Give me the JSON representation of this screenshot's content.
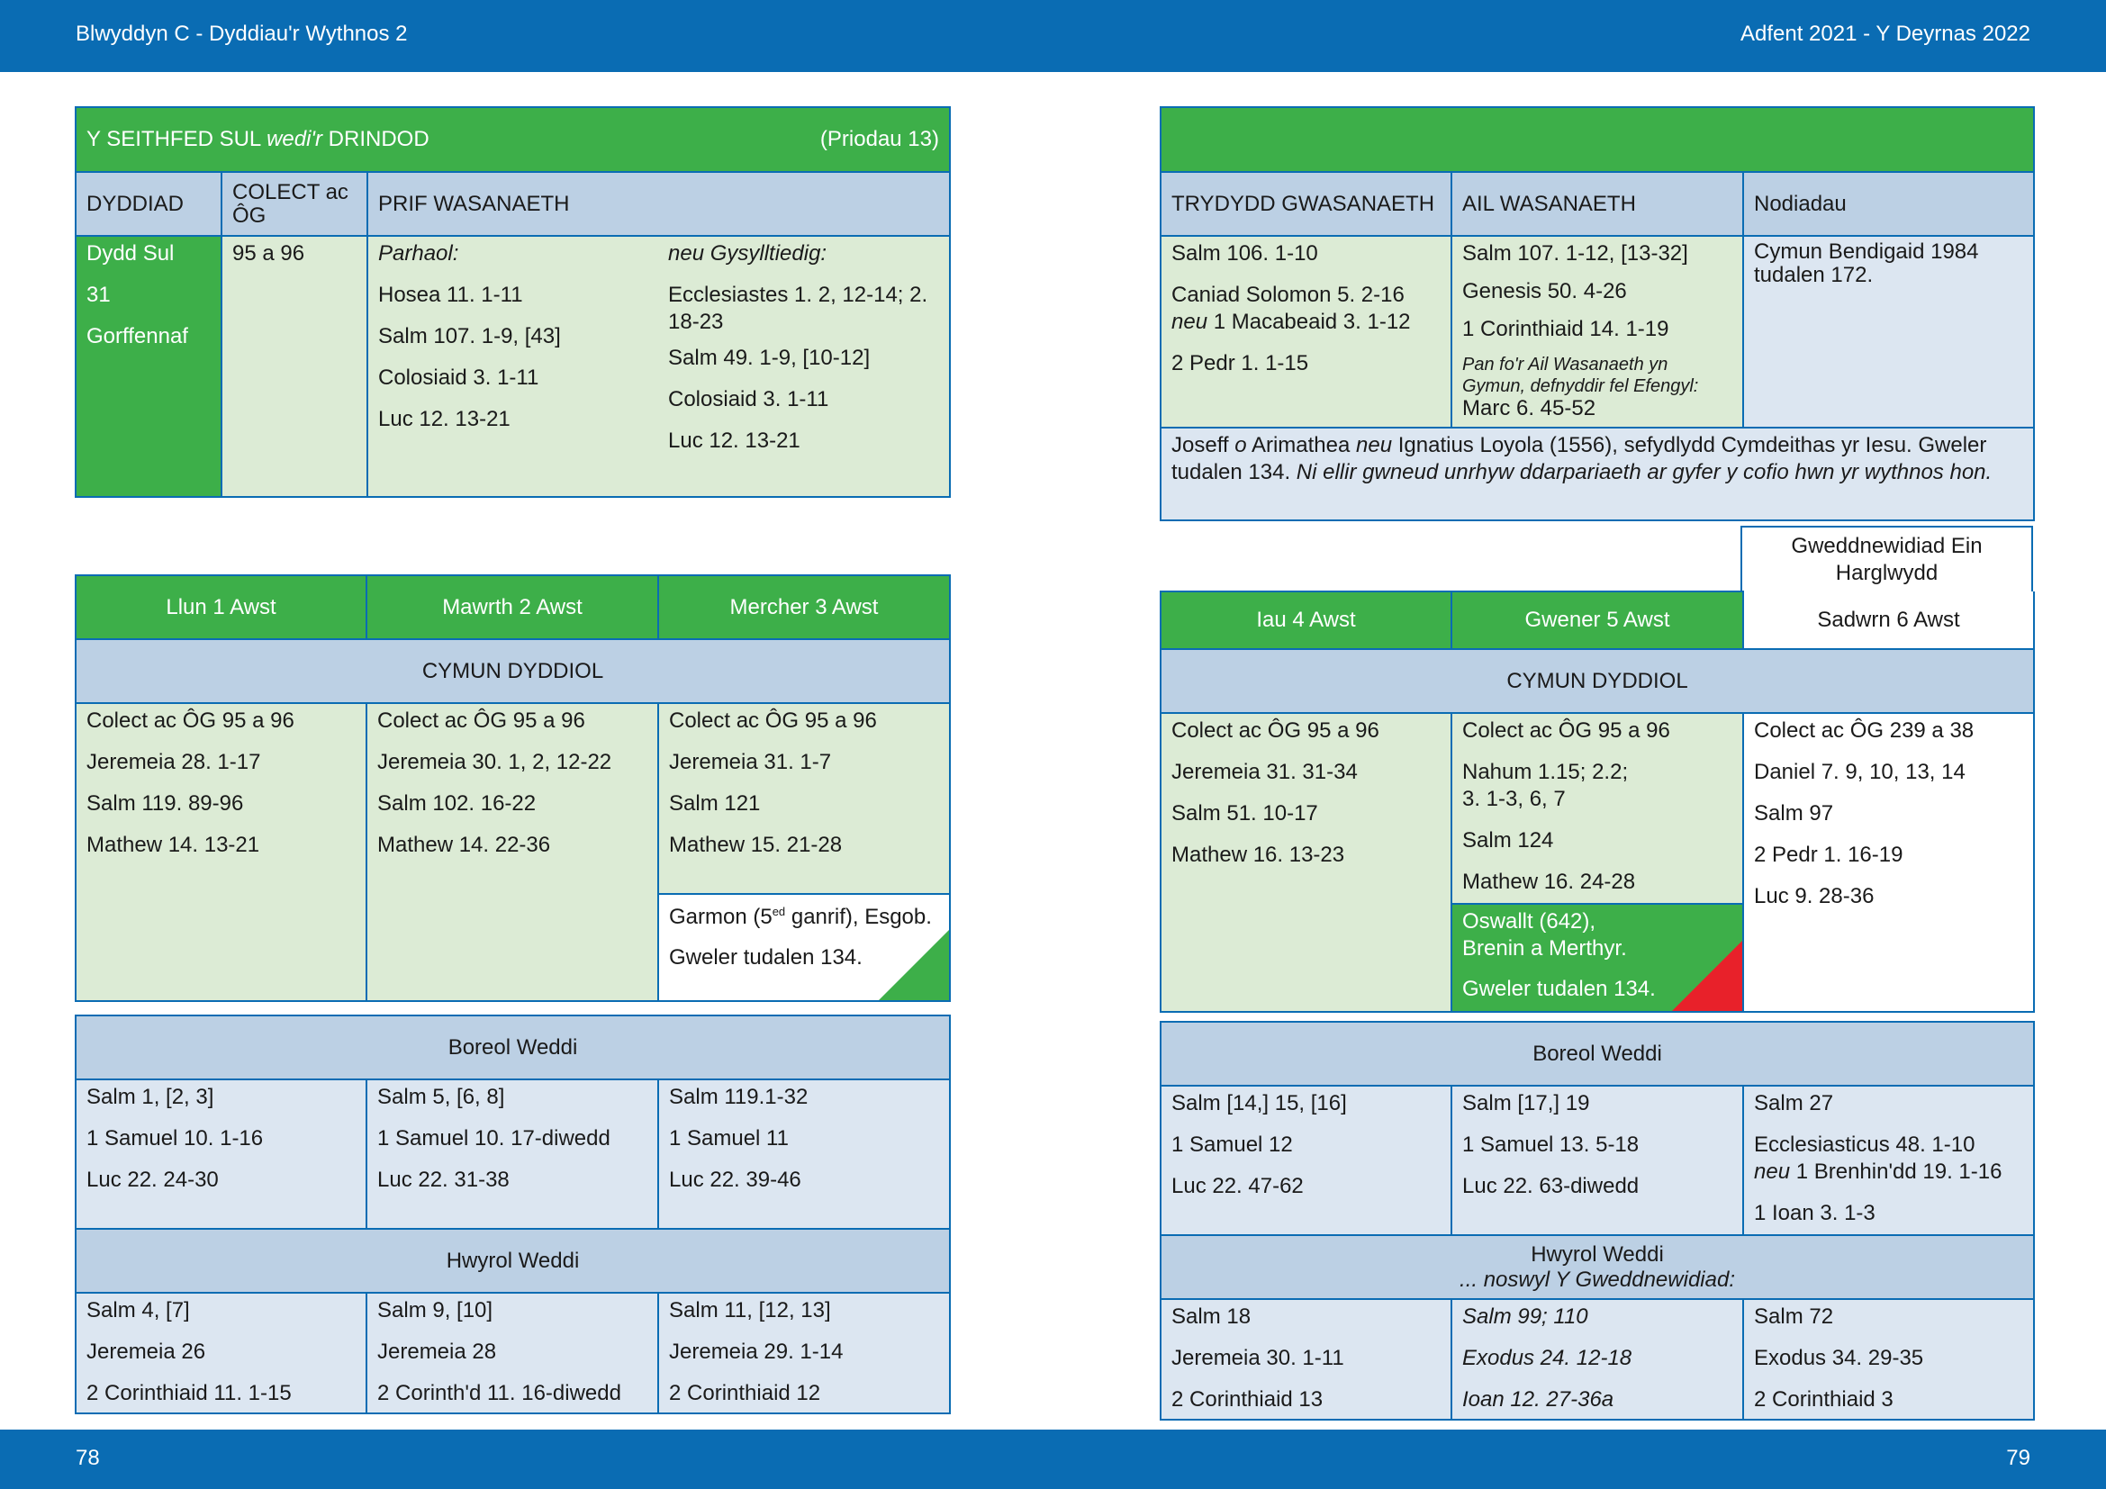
{
  "header": {
    "left": "Blwyddyn  C - Dyddiau'r Wythnos 2",
    "right": "Adfent 2021 - Y Deyrnas 2022"
  },
  "footer": {
    "left": "78",
    "right": "79"
  },
  "sunday": {
    "title_a": "Y SEITHFED SUL ",
    "title_b": "wedi'r",
    "title_c": " DRINDOD",
    "proper": "(Priodau 13)",
    "col_date": "DYDDIAD",
    "col_colect": "COLECT ac ÔG",
    "col_prif": "PRIF WASANAETH",
    "date": [
      "Dydd Sul",
      "31",
      "Gorffennaf"
    ],
    "colect": "95 a 96",
    "cont_head": "Parhaol:",
    "cont": [
      "Hosea 11. 1-11",
      "Salm 107. 1-9, [43]",
      "Colosiaid 3. 1-11",
      "Luc 12. 13-21"
    ],
    "rel_head": "neu Gysylltiedig:",
    "rel": [
      "Ecclesiastes 1. 2, 12-14; 2. 18-23",
      "Salm 49. 1-9, [10-12]",
      "Colosiaid 3. 1-11",
      "Luc 12. 13-21"
    ]
  },
  "sunday_right": {
    "col_third": "TRYDYDD GWASANAETH",
    "col_second": "AIL WASANAETH",
    "col_notes": "Nodiadau",
    "third_1": "Salm 106. 1-10",
    "third_2": "Caniad Solomon 5. 2-16",
    "third_3a": "neu",
    "third_3b": " 1 Macabeaid 3. 1-12",
    "third_4": "2 Pedr 1. 1-15",
    "second": [
      "Salm 107. 1-12, [13-32]",
      "Genesis 50. 4-26",
      "1 Corinthiaid 14. 1-19"
    ],
    "second_note": "Pan fo'r Ail Wasanaeth yn Gymun, defnyddir fel Efengyl:",
    "second_gospel": "Marc 6. 45-52",
    "notes": "Cymun Bendigaid 1984 tudalen 172.",
    "commem_a": "Joseff ",
    "commem_b": "o",
    "commem_c": " Arimathea ",
    "commem_d": "neu",
    "commem_e": " Ignatius Loyola (1556), sefydlydd Cymdeithas yr Iesu. Gweler tudalen 134. ",
    "commem_f": "Ni ellir gwneud unrhyw ddarpariaeth ar gyfer y cofio hwn yr wythnos hon."
  },
  "week_left": {
    "days": [
      "Llun 1 Awst",
      "Mawrth 2 Awst",
      "Mercher 3 Awst"
    ],
    "cymun": "CYMUN DYDDIOL",
    "mon": [
      "Colect ac ÔG 95 a 96",
      "Jeremeia 28. 1-17",
      "Salm 119. 89-96",
      "Mathew 14. 13-21"
    ],
    "tue": [
      "Colect ac ÔG 95 a 96",
      "Jeremeia 30. 1, 2, 12-22",
      "Salm 102. 16-22",
      "Mathew 14. 22-36"
    ],
    "wed": [
      "Colect ac ÔG 95 a 96",
      "Jeremeia 31. 1-7",
      "Salm 121",
      "Mathew 15. 21-28"
    ],
    "garmon_a": "Garmon (5",
    "garmon_sup": "ed",
    "garmon_b": " ganrif), Esgob.",
    "garmon_see": "Gweler tudalen 134.",
    "boreol": "Boreol Weddi",
    "bor_mon": [
      "Salm 1, [2, 3]",
      "1 Samuel 10. 1-16",
      "Luc 22. 24-30"
    ],
    "bor_tue": [
      "Salm 5, [6, 8]",
      "1 Samuel 10. 17-diwedd",
      "Luc 22. 31-38"
    ],
    "bor_wed": [
      "Salm 119.1-32",
      "1 Samuel 11",
      "Luc 22. 39-46"
    ],
    "hwyrol": "Hwyrol Weddi",
    "hw_mon": [
      "Salm 4, [7]",
      "Jeremeia 26",
      "2 Corinthiaid 11. 1-15"
    ],
    "hw_tue": [
      "Salm 9, [10]",
      "Jeremeia 28",
      "2 Corinth'd 11. 16-diwedd"
    ],
    "hw_wed": [
      "Salm 11, [12, 13]",
      "Jeremeia 29. 1-14",
      "2 Corinthiaid 12"
    ]
  },
  "week_right": {
    "transfig": "Gweddnewidiad Ein Harglwydd",
    "days": [
      "Iau 4 Awst",
      "Gwener 5 Awst",
      "Sadwrn 6 Awst"
    ],
    "cymun": "CYMUN DYDDIOL",
    "thu": [
      "Colect ac ÔG 95 a 96",
      "Jeremeia 31. 31-34",
      "Salm 51. 10-17",
      "Mathew 16. 13-23"
    ],
    "fri": [
      "Colect ac ÔG 95 a 96",
      "Nahum 1.15; 2.2; 3. 1-3, 6, 7",
      "Salm 124",
      "Mathew 16. 24-28"
    ],
    "sat": [
      "Colect ac ÔG 239 a 38",
      "Daniel 7. 9, 10, 13, 14",
      "Salm 97",
      "2 Pedr 1. 16-19",
      "Luc 9. 28-36"
    ],
    "oswallt": "Oswallt (642), Brenin a Merthyr.",
    "oswallt_see": "Gweler tudalen 134.",
    "boreol": "Boreol Weddi",
    "bor_thu": [
      "Salm [14,] 15, [16]",
      "1 Samuel 12",
      "Luc 22. 47-62"
    ],
    "bor_fri": [
      "Salm [17,] 19",
      "1 Samuel 13. 5-18",
      "Luc 22. 63-diwedd"
    ],
    "bor_sat_1": "Salm 27",
    "bor_sat_2": "Ecclesiasticus 48. 1-10",
    "bor_sat_3a": "neu",
    "bor_sat_3b": " 1 Brenhin'dd 19. 1-16",
    "bor_sat_4": "1 Ioan 3. 1-3",
    "hwyrol": "Hwyrol Weddi",
    "hwyrol_eve": "... noswyl Y Gweddnewidiad:",
    "hw_thu": [
      "Salm 18",
      "Jeremeia 30. 1-11",
      "2 Corinthiaid 13"
    ],
    "hw_fri": [
      "Salm 99; 110",
      "Exodus 24. 12-18",
      "Ioan 12. 27-36a"
    ],
    "hw_sat": [
      "Salm 72",
      "Exodus 34. 29-35",
      "2 Corinthiaid 3"
    ]
  },
  "colors": {
    "blue": "#0a6cb3",
    "green": "#3daf49",
    "light_green": "#dcebd5",
    "light_blue": "#dce6f1",
    "header_blue": "#bcd0e4",
    "red": "#e8212a"
  }
}
